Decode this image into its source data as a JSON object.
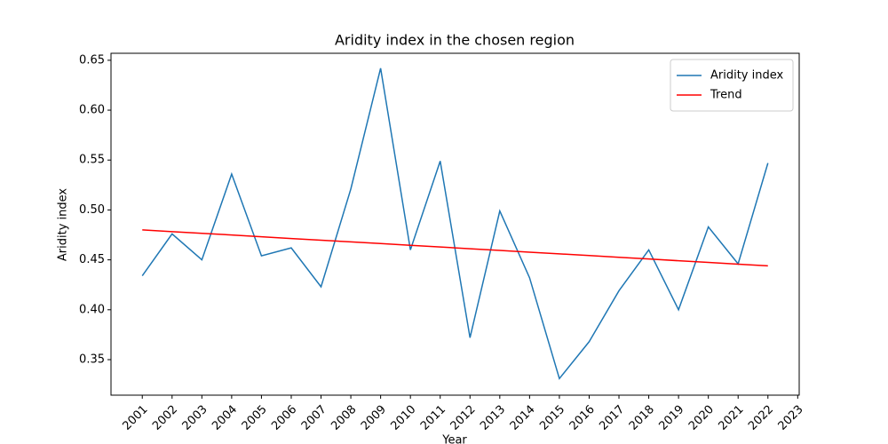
{
  "chart_data": {
    "type": "line",
    "title": "Aridity index in the chosen region",
    "xlabel": "Year",
    "ylabel": "Aridity index",
    "x": [
      2001,
      2002,
      2003,
      2004,
      2005,
      2006,
      2007,
      2008,
      2009,
      2010,
      2011,
      2012,
      2013,
      2014,
      2015,
      2016,
      2017,
      2018,
      2019,
      2020,
      2021,
      2022
    ],
    "series": [
      {
        "name": "Aridity index",
        "color": "#1f77b4",
        "values": [
          0.434,
          0.476,
          0.45,
          0.536,
          0.454,
          0.462,
          0.423,
          0.521,
          0.642,
          0.46,
          0.549,
          0.372,
          0.499,
          0.432,
          0.331,
          0.368,
          0.419,
          0.46,
          0.4,
          0.483,
          0.446,
          0.547
        ]
      },
      {
        "name": "Trend",
        "color": "#ff0000",
        "values": [
          0.48,
          0.4783,
          0.4766,
          0.4749,
          0.4731,
          0.4714,
          0.4697,
          0.468,
          0.4663,
          0.4646,
          0.4629,
          0.4611,
          0.4594,
          0.4577,
          0.456,
          0.4543,
          0.4526,
          0.4509,
          0.4491,
          0.4474,
          0.4457,
          0.444
        ]
      }
    ],
    "xlim": [
      1999.95,
      2023.05
    ],
    "xticks": [
      2001,
      2002,
      2003,
      2004,
      2005,
      2006,
      2007,
      2008,
      2009,
      2010,
      2011,
      2012,
      2013,
      2014,
      2015,
      2016,
      2017,
      2018,
      2019,
      2020,
      2021,
      2022,
      2023
    ],
    "ylim": [
      0.3144,
      0.657
    ],
    "yticks": [
      0.35,
      {
        "value": 0.4,
        "label": "0.40"
      },
      0.45,
      {
        "value": 0.5,
        "label": "0.50"
      },
      0.55,
      {
        "value": 0.6,
        "label": "0.60"
      },
      0.65
    ],
    "legend": "upper right"
  }
}
